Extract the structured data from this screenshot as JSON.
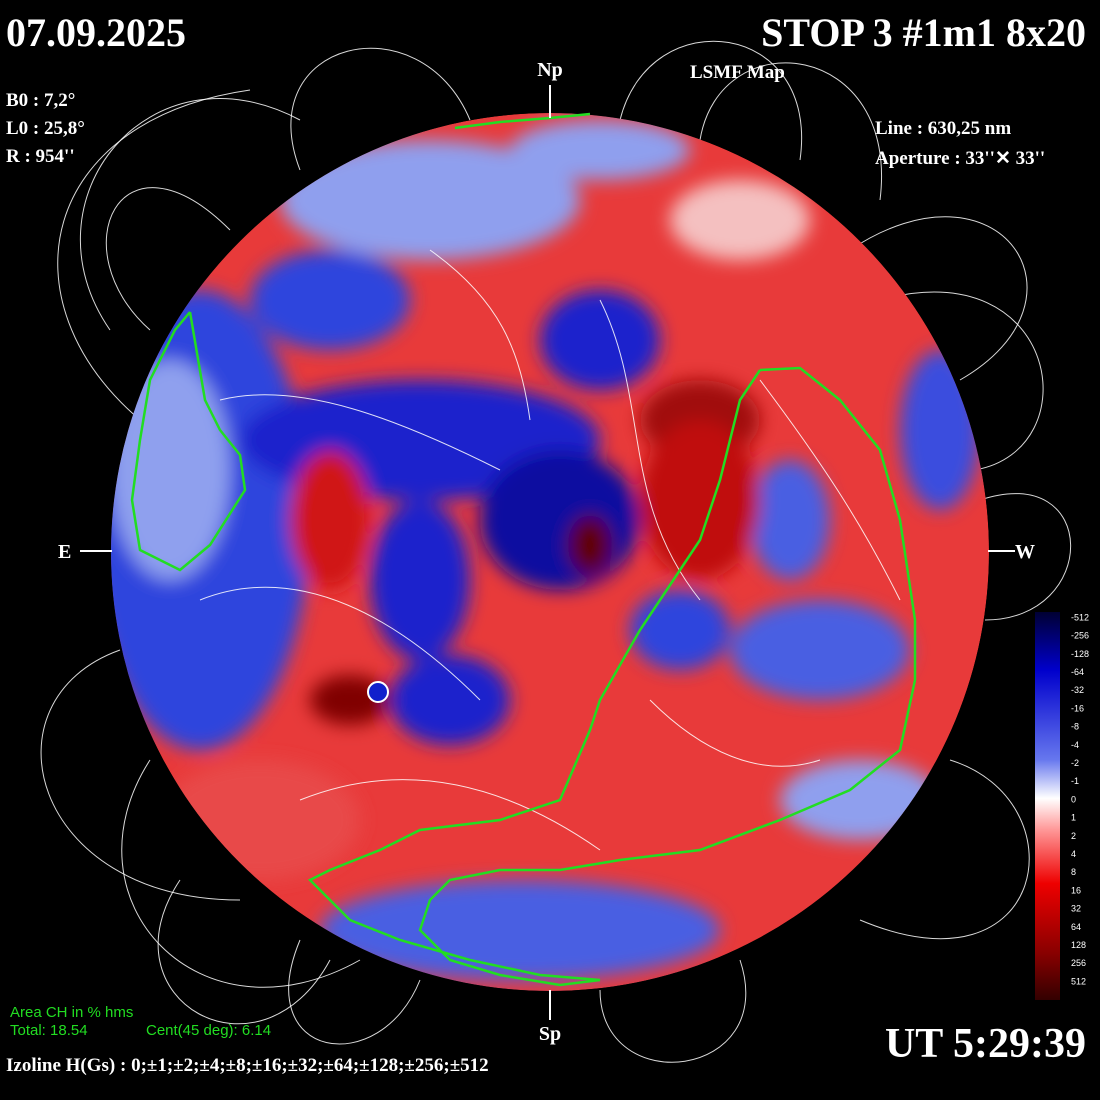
{
  "header": {
    "date": "07.09.2025",
    "title": "STOP 3 #1m1 8x20",
    "subtitle": "LSMF  Map"
  },
  "params": {
    "left": [
      "B0 : 7,2°",
      "L0 : 25,8°",
      "R  : 954''"
    ],
    "right": [
      "Line :  630,25 nm",
      "Aperture : 33''✕ 33''"
    ]
  },
  "directions": {
    "north": "Np",
    "south": "Sp",
    "east": "E",
    "west": "W"
  },
  "area": {
    "title": "Area CH in % hms",
    "total": "Total: 18.54",
    "cent": "Cent(45 deg): 6.14"
  },
  "time": "UT 5:29:39",
  "izoline": "Izoline H(Gs) : 0;±1;±2;±4;±8;±16;±32;±64;±128;±256;±512",
  "colorbar": {
    "ticks": [
      -512,
      -256,
      -128,
      -64,
      -32,
      -16,
      -8,
      -4,
      -2,
      -1,
      0,
      1,
      2,
      4,
      8,
      16,
      32,
      64,
      128,
      256,
      512
    ]
  }
}
